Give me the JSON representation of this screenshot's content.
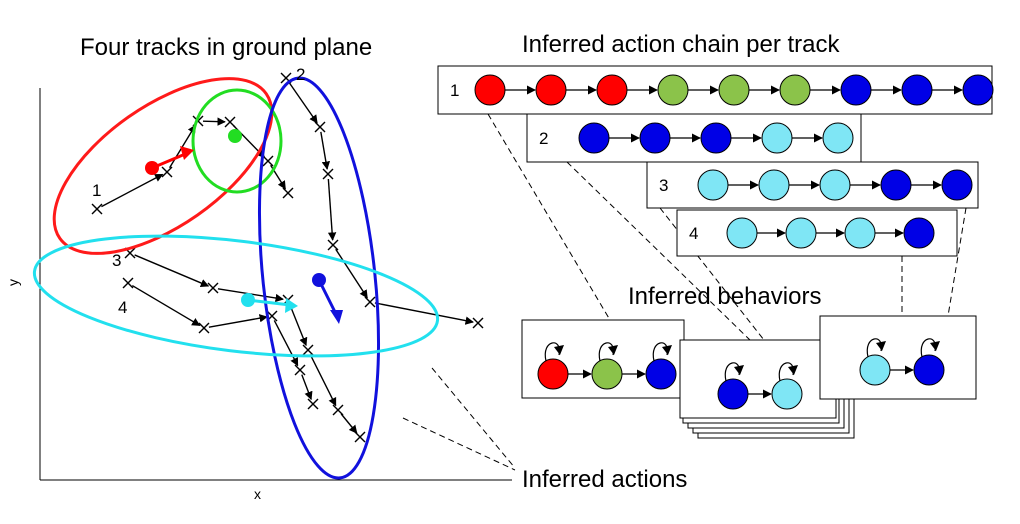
{
  "left_panel": {
    "title": "Four tracks in ground plane",
    "x_axis_label": "x",
    "y_axis_label": "y",
    "track_numbers": [
      "1",
      "2",
      "3",
      "4"
    ]
  },
  "right_panel": {
    "title": "Inferred action chain per track",
    "chains": [
      {
        "label": "1",
        "nodes": [
          "red",
          "red",
          "red",
          "green",
          "green",
          "green",
          "blue",
          "blue",
          "blue"
        ]
      },
      {
        "label": "2",
        "nodes": [
          "blue",
          "blue",
          "blue",
          "cyan",
          "cyan"
        ]
      },
      {
        "label": "3",
        "nodes": [
          "cyan",
          "cyan",
          "cyan",
          "blue",
          "blue"
        ]
      },
      {
        "label": "4",
        "nodes": [
          "cyan",
          "cyan",
          "cyan",
          "blue"
        ]
      }
    ],
    "behaviors_label": "Inferred behaviors",
    "actions_label": "Inferred actions",
    "behavior_models": [
      {
        "name": "behavior-1",
        "nodes": [
          "red",
          "green",
          "blue"
        ]
      },
      {
        "name": "behavior-2",
        "nodes": [
          "blue",
          "cyan"
        ]
      },
      {
        "name": "behavior-3",
        "nodes": [
          "cyan",
          "blue"
        ]
      }
    ]
  },
  "colors": {
    "red": "#ff0000",
    "green": "#8bc34a",
    "blue": "#0000e6",
    "cyan": "#7fe6f5",
    "ellipse_red": "#ff1a1a",
    "ellipse_green": "#22dd22",
    "ellipse_blue": "#1111dd",
    "ellipse_cyan": "#22e0ee"
  }
}
